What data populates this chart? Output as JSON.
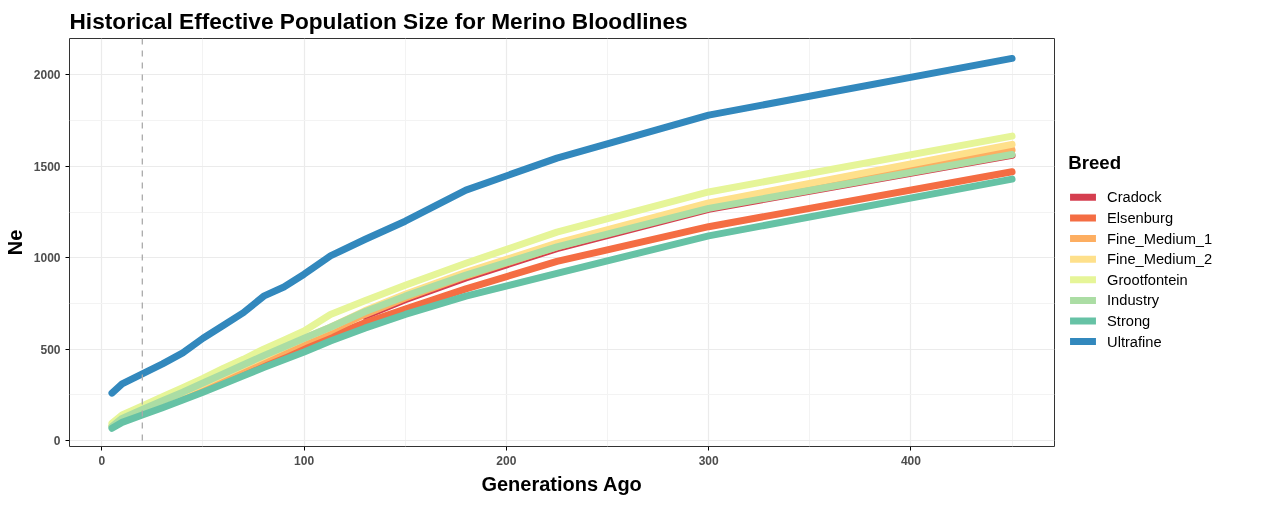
{
  "chart_data": {
    "type": "line",
    "title": "Historical Effective Population Size for Merino Bloodlines",
    "xlabel": "Generations Ago",
    "ylabel": "Ne",
    "legend_title": "Breed",
    "x": [
      5,
      10,
      20,
      30,
      40,
      50,
      60,
      70,
      80,
      90,
      100,
      113,
      130,
      150,
      180,
      225,
      300,
      450
    ],
    "series": [
      {
        "name": "Cradock",
        "color": "#d53e4f",
        "values": [
          null,
          null,
          null,
          null,
          null,
          null,
          null,
          null,
          null,
          null,
          null,
          null,
          680,
          770,
          890,
          1050,
          1265,
          1560
        ]
      },
      {
        "name": "Elsenburg",
        "color": "#f46d43",
        "values": [
          null,
          null,
          null,
          null,
          null,
          null,
          325,
          375,
          420,
          465,
          510,
          570,
          645,
          720,
          830,
          980,
          1170,
          1470
        ]
      },
      {
        "name": "Fine_Medium_1",
        "color": "#fdae61",
        "values": [
          null,
          null,
          null,
          null,
          250,
          300,
          345,
          395,
          445,
          490,
          540,
          600,
          690,
          780,
          900,
          1060,
          1280,
          1590
        ]
      },
      {
        "name": "Fine_Medium_2",
        "color": "#fee08b",
        "values": [
          80,
          120,
          170,
          215,
          262,
          310,
          360,
          410,
          460,
          510,
          560,
          620,
          710,
          800,
          920,
          1080,
          1300,
          1620
        ]
      },
      {
        "name": "Grootfontein",
        "color": "#e6f598",
        "values": [
          95,
          140,
          190,
          240,
          290,
          340,
          395,
          445,
          500,
          550,
          600,
          690,
          765,
          850,
          970,
          1140,
          1360,
          1665
        ]
      },
      {
        "name": "Industry",
        "color": "#abdda4",
        "values": [
          78,
          122,
          170,
          218,
          265,
          315,
          365,
          415,
          465,
          512,
          560,
          620,
          705,
          790,
          905,
          1060,
          1270,
          1565
        ]
      },
      {
        "name": "Strong",
        "color": "#66c2a5",
        "values": [
          68,
          100,
          140,
          180,
          222,
          265,
          310,
          355,
          400,
          442,
          485,
          545,
          615,
          690,
          790,
          915,
          1120,
          1430
        ]
      },
      {
        "name": "Ultrafine",
        "color": "#3288bd",
        "values": [
          260,
          310,
          365,
          420,
          480,
          560,
          630,
          700,
          790,
          840,
          910,
          1010,
          1100,
          1200,
          1370,
          1545,
          1780,
          2090
        ]
      }
    ],
    "xlim": [
      -16,
      471
    ],
    "ylim": [
      -32,
      2199
    ],
    "xticks": [
      0,
      100,
      200,
      300,
      400
    ],
    "yticks": [
      0,
      500,
      1000,
      1500,
      2000
    ],
    "ref_lines": [
      {
        "axis": "x",
        "value": 20,
        "color": "#aaaaaa",
        "line_style": "dashed"
      }
    ],
    "grid": true,
    "legend": "right",
    "line_style": "solid",
    "marker": "none"
  }
}
